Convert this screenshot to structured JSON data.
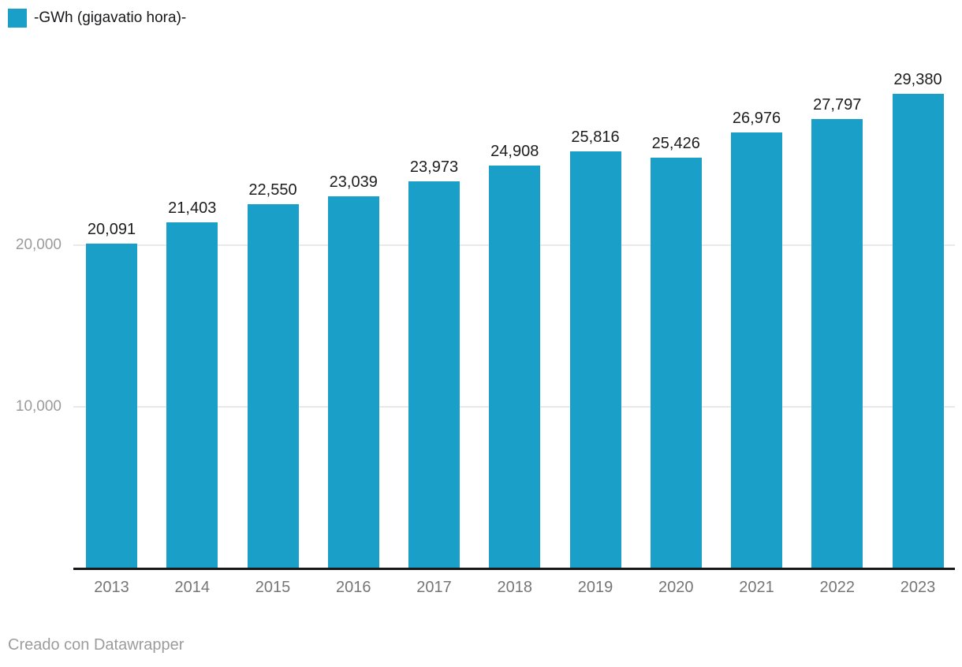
{
  "legend": {
    "label": "-GWh (gigavatio hora)-",
    "color": "#1a9fc9"
  },
  "footer": {
    "text": "Creado con Datawrapper"
  },
  "chart_data": {
    "type": "bar",
    "title": "",
    "legend_entries": [
      "-GWh (gigavatio hora)-"
    ],
    "legend_position": "top-left",
    "categories": [
      "2013",
      "2014",
      "2015",
      "2016",
      "2017",
      "2018",
      "2019",
      "2020",
      "2021",
      "2022",
      "2023"
    ],
    "values": [
      20091,
      21403,
      22550,
      23039,
      23973,
      24908,
      25816,
      25426,
      26976,
      27797,
      29380
    ],
    "value_labels": [
      "20,091",
      "21,403",
      "22,550",
      "23,039",
      "23,973",
      "24,908",
      "25,816",
      "25,426",
      "26,976",
      "27,797",
      "29,380"
    ],
    "xlabel": "",
    "ylabel": "",
    "ylim": [
      0,
      30000
    ],
    "yticks": [
      10000,
      20000
    ],
    "ytick_labels": [
      "10,000",
      "20,000"
    ],
    "grid": true,
    "bar_color": "#1a9fc9",
    "colors": {
      "value_label": "#1d1d1d",
      "x_tick_label": "#767676",
      "y_tick_label": "#9b9b9b",
      "gridline": "#e9e9e9",
      "axis_line": "#18181b",
      "footer_text": "#9c9c9c"
    }
  }
}
